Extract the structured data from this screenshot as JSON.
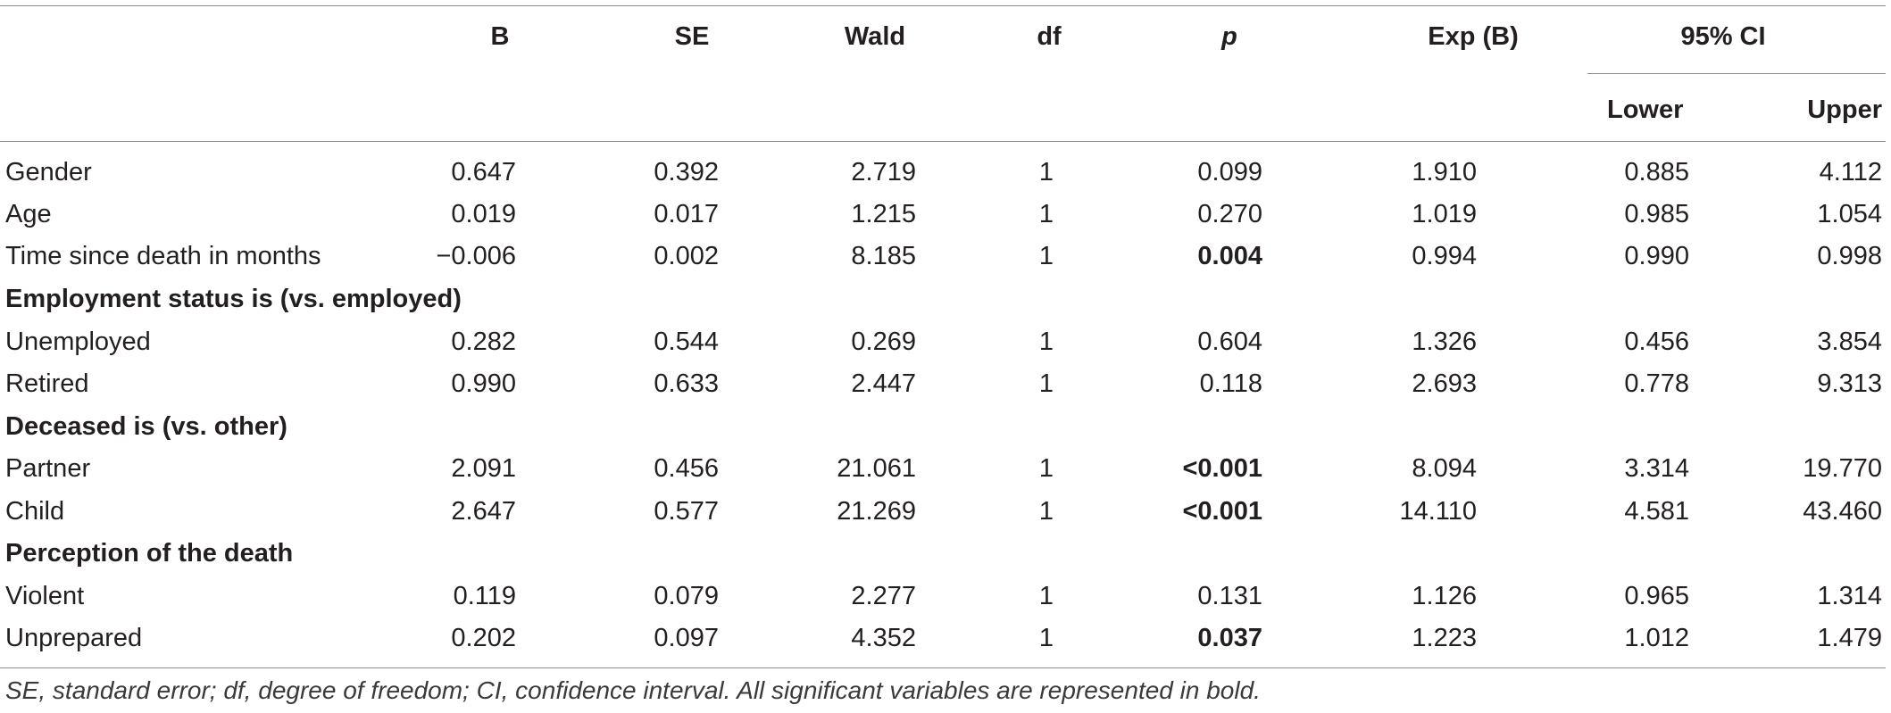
{
  "table": {
    "headers": {
      "b": "B",
      "se": "SE",
      "wald": "Wald",
      "df": "df",
      "p": "p",
      "expb": "Exp (B)",
      "ci": "95% CI",
      "lower": "Lower",
      "upper": "Upper"
    },
    "rows": [
      {
        "type": "data",
        "label": "Gender",
        "b": "0.647",
        "se": "0.392",
        "wald": "2.719",
        "df": "1",
        "p": "0.099",
        "p_bold": false,
        "expb": "1.910",
        "lower": "0.885",
        "upper": "4.112"
      },
      {
        "type": "data",
        "label": "Age",
        "b": "0.019",
        "se": "0.017",
        "wald": "1.215",
        "df": "1",
        "p": "0.270",
        "p_bold": false,
        "expb": "1.019",
        "lower": "0.985",
        "upper": "1.054"
      },
      {
        "type": "data",
        "label": "Time since death in months",
        "b": "−0.006",
        "se": "0.002",
        "wald": "8.185",
        "df": "1",
        "p": "0.004",
        "p_bold": true,
        "expb": "0.994",
        "lower": "0.990",
        "upper": "0.998"
      },
      {
        "type": "section",
        "label": "Employment status is (vs. employed)"
      },
      {
        "type": "data",
        "label": "Unemployed",
        "b": "0.282",
        "se": "0.544",
        "wald": "0.269",
        "df": "1",
        "p": "0.604",
        "p_bold": false,
        "expb": "1.326",
        "lower": "0.456",
        "upper": "3.854"
      },
      {
        "type": "data",
        "label": "Retired",
        "b": "0.990",
        "se": "0.633",
        "wald": "2.447",
        "df": "1",
        "p": "0.118",
        "p_bold": false,
        "expb": "2.693",
        "lower": "0.778",
        "upper": "9.313"
      },
      {
        "type": "section",
        "label": "Deceased is (vs. other)"
      },
      {
        "type": "data",
        "label": "Partner",
        "b": "2.091",
        "se": "0.456",
        "wald": "21.061",
        "df": "1",
        "p": "<0.001",
        "p_bold": true,
        "expb": "8.094",
        "lower": "3.314",
        "upper": "19.770"
      },
      {
        "type": "data",
        "label": "Child",
        "b": "2.647",
        "se": "0.577",
        "wald": "21.269",
        "df": "1",
        "p": "<0.001",
        "p_bold": true,
        "expb": "14.110",
        "lower": "4.581",
        "upper": "43.460"
      },
      {
        "type": "section",
        "label": "Perception of the death"
      },
      {
        "type": "data",
        "label": "Violent",
        "b": "0.119",
        "se": "0.079",
        "wald": "2.277",
        "df": "1",
        "p": "0.131",
        "p_bold": false,
        "expb": "1.126",
        "lower": "0.965",
        "upper": "1.314"
      },
      {
        "type": "data",
        "label": "Unprepared",
        "b": "0.202",
        "se": "0.097",
        "wald": "4.352",
        "df": "1",
        "p": "0.037",
        "p_bold": true,
        "expb": "1.223",
        "lower": "1.012",
        "upper": "1.479"
      }
    ]
  },
  "footnote": "SE, standard error; df, degree of freedom; CI, confidence interval. All significant variables are represented in bold."
}
